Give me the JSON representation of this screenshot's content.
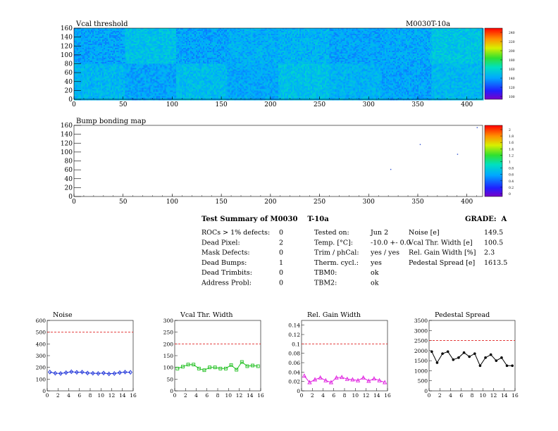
{
  "header": {
    "module_id": "M0030T-10a"
  },
  "chart_data": [
    {
      "type": "heatmap",
      "title": "Vcal threshold",
      "xlim": [
        0,
        416
      ],
      "ylim": [
        0,
        160
      ],
      "x_ticks": [
        "0",
        "50",
        "100",
        "150",
        "200",
        "250",
        "300",
        "350",
        "400"
      ],
      "y_ticks": [
        "0",
        "20",
        "40",
        "60",
        "80",
        "100",
        "120",
        "140",
        "160"
      ],
      "palette": "rainbow",
      "color_scale_labels": [
        "240",
        "220",
        "200",
        "180",
        "160",
        "140",
        "120",
        "100"
      ],
      "roc_grid": {
        "cols": 8,
        "rows": 2
      },
      "roc_levels": [
        [
          0.3,
          0.36,
          0.3,
          0.32,
          0.33,
          0.3,
          0.31,
          0.37
        ],
        [
          0.34,
          0.3,
          0.35,
          0.31,
          0.36,
          0.33,
          0.3,
          0.34
        ]
      ]
    },
    {
      "type": "heatmap",
      "title": "Bump bonding map",
      "xlim": [
        0,
        416
      ],
      "ylim": [
        0,
        160
      ],
      "x_ticks": [
        "0",
        "50",
        "100",
        "150",
        "200",
        "250",
        "300",
        "350",
        "400"
      ],
      "y_ticks": [
        "0",
        "20",
        "40",
        "60",
        "80",
        "100",
        "120",
        "140",
        "160"
      ],
      "palette": "rainbow",
      "color_scale_labels": [
        "2",
        "1.8",
        "1.6",
        "1.4",
        "1.2",
        "1",
        "0.8",
        "0.6",
        "0.4",
        "0.2",
        "0"
      ],
      "hits": [
        {
          "x": 352,
          "y": 118
        },
        {
          "x": 390,
          "y": 96
        },
        {
          "x": 322,
          "y": 62
        },
        {
          "x": 410,
          "y": 156
        }
      ]
    },
    {
      "type": "line",
      "title": "Noise",
      "xlim": [
        0,
        16
      ],
      "ylim": [
        0,
        600
      ],
      "x_ticks": [
        "0",
        "2",
        "4",
        "6",
        "8",
        "10",
        "12",
        "14",
        "16"
      ],
      "y_ticks": [
        "0",
        "100",
        "200",
        "300",
        "400",
        "500",
        "600"
      ],
      "threshold": 500,
      "color": "#1a2fd8",
      "marker": "diamond",
      "x": [
        0.5,
        1.5,
        2.5,
        3.5,
        4.5,
        5.5,
        6.5,
        7.5,
        8.5,
        9.5,
        10.5,
        11.5,
        12.5,
        13.5,
        14.5,
        15.5
      ],
      "values": [
        160,
        150,
        148,
        155,
        163,
        158,
        160,
        152,
        150,
        148,
        152,
        145,
        148,
        155,
        160,
        158
      ]
    },
    {
      "type": "line",
      "title": "Vcal Thr. Width",
      "xlim": [
        0,
        16
      ],
      "ylim": [
        0,
        300
      ],
      "x_ticks": [
        "0",
        "2",
        "4",
        "6",
        "8",
        "10",
        "12",
        "14",
        "16"
      ],
      "y_ticks": [
        "0",
        "50",
        "100",
        "150",
        "200",
        "250",
        "300"
      ],
      "threshold": 200,
      "color": "#22c022",
      "marker": "square",
      "x": [
        0.5,
        1.5,
        2.5,
        3.5,
        4.5,
        5.5,
        6.5,
        7.5,
        8.5,
        9.5,
        10.5,
        11.5,
        12.5,
        13.5,
        14.5,
        15.5
      ],
      "values": [
        95,
        103,
        112,
        112,
        95,
        88,
        100,
        100,
        95,
        95,
        110,
        90,
        123,
        105,
        108,
        105
      ]
    },
    {
      "type": "line",
      "title": "Rel. Gain Width",
      "xlim": [
        0,
        16
      ],
      "ylim": [
        0,
        0.15
      ],
      "x_ticks": [
        "0",
        "2",
        "4",
        "6",
        "8",
        "10",
        "12",
        "14",
        "16"
      ],
      "y_ticks": [
        "0",
        "0.02",
        "0.04",
        "0.06",
        "0.08",
        "0.1",
        "0.12",
        "0.14"
      ],
      "threshold": 0.1,
      "color": "#e020e0",
      "marker": "triangle",
      "x": [
        0.5,
        1.5,
        2.5,
        3.5,
        4.5,
        5.5,
        6.5,
        7.5,
        8.5,
        9.5,
        10.5,
        11.5,
        12.5,
        13.5,
        14.5,
        15.5
      ],
      "values": [
        0.032,
        0.018,
        0.024,
        0.028,
        0.022,
        0.018,
        0.028,
        0.029,
        0.025,
        0.024,
        0.022,
        0.028,
        0.021,
        0.026,
        0.022,
        0.018
      ]
    },
    {
      "type": "line",
      "title": "Pedestal Spread",
      "xlim": [
        0,
        16
      ],
      "ylim": [
        0,
        3500
      ],
      "x_ticks": [
        "0",
        "2",
        "4",
        "6",
        "8",
        "10",
        "12",
        "14",
        "16"
      ],
      "y_ticks": [
        "0",
        "500",
        "1000",
        "1500",
        "2000",
        "2500",
        "3000",
        "3500"
      ],
      "threshold": 2500,
      "color": "#000000",
      "marker": "circle",
      "x": [
        0.5,
        1.5,
        2.5,
        3.5,
        4.5,
        5.5,
        6.5,
        7.5,
        8.5,
        9.5,
        10.5,
        11.5,
        12.5,
        13.5,
        14.5,
        15.5
      ],
      "values": [
        1950,
        1400,
        1850,
        1950,
        1550,
        1650,
        1900,
        1700,
        1850,
        1250,
        1650,
        1800,
        1500,
        1650,
        1250,
        1250
      ]
    }
  ],
  "summary": {
    "title": "Test Summary of M0030    T-10a",
    "grade": "GRADE:  A",
    "col1": [
      {
        "label": "ROCs > 1% defects:",
        "value": "0"
      },
      {
        "label": "Dead Pixel:",
        "value": "2"
      },
      {
        "label": "Mask Defects:",
        "value": "0"
      },
      {
        "label": "Dead Bumps:",
        "value": "1"
      },
      {
        "label": "Dead Trimbits:",
        "value": "0"
      },
      {
        "label": "Address Probl:",
        "value": "0"
      }
    ],
    "col2": [
      {
        "label": "Tested on:",
        "value": "Jun 2"
      },
      {
        "label": "Temp. [°C]:",
        "value": "-10.0 +- 0.0"
      },
      {
        "label": "Trim / phCal:",
        "value": "yes / yes"
      },
      {
        "label": "Therm. cycl.:",
        "value": "yes"
      },
      {
        "label": "TBM0:",
        "value": "ok"
      },
      {
        "label": "TBM2:",
        "value": "ok"
      }
    ],
    "col3": [
      {
        "label": "Noise [e]",
        "value": "149.5"
      },
      {
        "label": "Vcal Thr. Width [e]",
        "value": "100.5"
      },
      {
        "label": "Rel. Gain Width [%]",
        "value": "2.3"
      },
      {
        "label": "Pedestal Spread [e]",
        "value": "1613.5"
      }
    ]
  }
}
